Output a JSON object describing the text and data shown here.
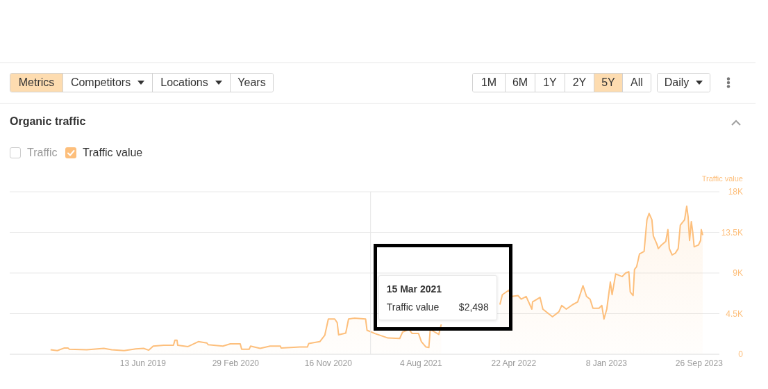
{
  "chart_data": {
    "type": "area",
    "title": "Organic traffic",
    "ylabel": "Traffic value",
    "annotations": [
      "Metrics",
      "Competitors",
      "Locations",
      "Years",
      "1M",
      "6M",
      "1Y",
      "2Y",
      "5Y",
      "All",
      "Daily",
      "Traffic",
      "15 Mar 2021",
      "Traffic value",
      "$2,498"
    ],
    "x": [
      "2018-09-26",
      "2018-10-15",
      "2018-11-04",
      "2018-11-14",
      "2018-11-18",
      "2019-01-06",
      "2019-02-23",
      "2019-03-17",
      "2019-04-21",
      "2019-05-24",
      "2019-06-15",
      "2019-06-29",
      "2019-07-12",
      "2019-08-11",
      "2019-09-07",
      "2019-09-11",
      "2019-09-17",
      "2019-09-19",
      "2019-10-18",
      "2019-11-16",
      "2019-12-10",
      "2019-12-14",
      "2020-01-24",
      "2020-02-14",
      "2020-03-13",
      "2020-03-17",
      "2020-04-07",
      "2020-04-11",
      "2020-05-08",
      "2020-06-05",
      "2020-07-04",
      "2020-07-06",
      "2020-08-28",
      "2020-09-18",
      "2020-09-22",
      "2020-10-23",
      "2020-11-06",
      "2020-11-16",
      "2020-12-04",
      "2020-12-11",
      "2020-12-15",
      "2021-01-04",
      "2021-01-12",
      "2021-01-29",
      "2021-03-01",
      "2021-03-05",
      "2021-03-15",
      "2021-03-27",
      "2021-05-03",
      "2021-06-05",
      "2021-06-13",
      "2021-07-01",
      "2021-07-10",
      "2021-07-28",
      "2021-08-05",
      "2021-08-18",
      "2021-08-26",
      "2021-08-30",
      "2021-09-23",
      "2021-09-30",
      "2021-10-10",
      "2022-03-14",
      "2022-03-21",
      "2022-04-08",
      "2022-04-16",
      "2022-05-04",
      "2022-05-13",
      "2022-05-27",
      "2022-06-12",
      "2022-06-14",
      "2022-07-05",
      "2022-07-13",
      "2022-07-27",
      "2022-08-09",
      "2022-08-27",
      "2022-09-04",
      "2022-09-17",
      "2022-10-05",
      "2022-10-19",
      "2022-11-03",
      "2022-11-13",
      "2022-11-23",
      "2022-12-01",
      "2022-12-18",
      "2022-12-26",
      "2023-01-01",
      "2023-01-09",
      "2023-01-19",
      "2023-01-24",
      "2023-02-03",
      "2023-02-21",
      "2023-03-03",
      "2023-03-12",
      "2023-03-16",
      "2023-03-24",
      "2023-03-28",
      "2023-04-03",
      "2023-04-11",
      "2023-04-24",
      "2023-05-02",
      "2023-05-08",
      "2023-05-16",
      "2023-05-20",
      "2023-05-30",
      "2023-06-03",
      "2023-06-12",
      "2023-06-24",
      "2023-06-30",
      "2023-07-04",
      "2023-07-12",
      "2023-07-21",
      "2023-07-29",
      "2023-08-04",
      "2023-08-16",
      "2023-08-22",
      "2023-08-26",
      "2023-08-30",
      "2023-09-04",
      "2023-09-08",
      "2023-09-12",
      "2023-09-24",
      "2023-09-30",
      "2023-10-02",
      "2023-10-06"
    ],
    "series": [
      {
        "name": "Traffic value",
        "color": "#fdbf7c",
        "values": [
          500,
          400,
          700,
          700,
          550,
          500,
          650,
          500,
          400,
          600,
          650,
          450,
          900,
          1000,
          1000,
          1550,
          1550,
          1000,
          850,
          1400,
          1250,
          1050,
          900,
          1150,
          1150,
          550,
          550,
          900,
          650,
          900,
          900,
          700,
          800,
          800,
          1200,
          1400,
          2100,
          3900,
          3900,
          3500,
          2150,
          2350,
          3900,
          4000,
          3900,
          2650,
          2498,
          2300,
          1800,
          1750,
          2450,
          2750,
          2300,
          2300,
          1400,
          800,
          750,
          2750,
          2200,
          3300,
          null,
          5500,
          6600,
          7100,
          6400,
          6500,
          6100,
          6400,
          5000,
          5800,
          6300,
          5000,
          4550,
          4150,
          4700,
          5400,
          5000,
          5500,
          5800,
          7600,
          6400,
          6100,
          5100,
          5100,
          5400,
          3900,
          5000,
          8000,
          6600,
          8900,
          8600,
          9000,
          9150,
          6900,
          6500,
          9400,
          9700,
          11100,
          11400,
          14900,
          15600,
          14900,
          13100,
          12200,
          11700,
          12100,
          12500,
          13800,
          11700,
          11000,
          11200,
          11700,
          14300,
          14900,
          16400,
          15200,
          12600,
          14700,
          13500,
          11900,
          12100,
          12600,
          13800,
          13200
        ]
      }
    ],
    "xlim": [
      "2018-06-03",
      "2023-11-22"
    ],
    "xticks": [
      {
        "value": "2019-06-13",
        "label": "13 Jun 2019"
      },
      {
        "value": "2020-02-29",
        "label": "29 Feb 2020"
      },
      {
        "value": "2020-11-16",
        "label": "16 Nov 2020"
      },
      {
        "value": "2021-08-04",
        "label": "4 Aug 2021"
      },
      {
        "value": "2022-04-22",
        "label": "22 Apr 2022"
      },
      {
        "value": "2023-01-08",
        "label": "8 Jan 2023"
      },
      {
        "value": "2023-09-26",
        "label": "26 Sep 2023"
      }
    ],
    "ylim": [
      0,
      18000
    ],
    "yticks": [
      0,
      {
        "value": 4500,
        "label": "4.5K"
      },
      {
        "value": 9000,
        "label": "9K"
      },
      {
        "value": 13500,
        "label": "13.5K"
      },
      {
        "value": 18000,
        "label": "18K"
      }
    ],
    "grid": "y",
    "legend": "top left",
    "ref_lines": [
      {
        "axis": "x",
        "value": "2021-03-15",
        "color": "#e6e6e6"
      }
    ]
  }
}
